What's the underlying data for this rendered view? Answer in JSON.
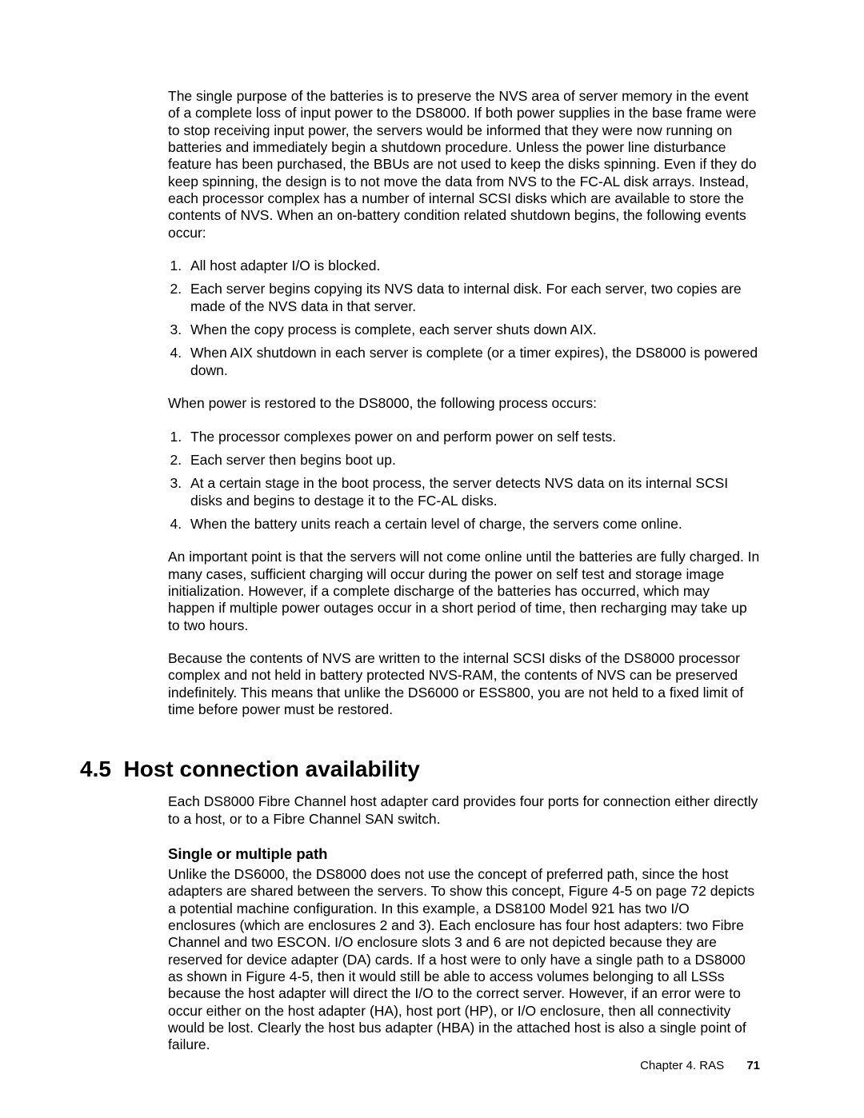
{
  "intro_para": "The single purpose of the batteries is to preserve the NVS area of server memory in the event of a complete loss of input power to the DS8000. If both power supplies in the base frame were to stop receiving input power, the servers would be informed that they were now running on batteries and immediately begin a shutdown procedure. Unless the power line disturbance feature has been purchased, the BBUs are not used to keep the disks spinning. Even if they do keep spinning, the design is to not move the data from NVS to the FC-AL disk arrays. Instead, each processor complex has a number of internal SCSI disks which are available to store the contents of NVS. When an on-battery condition related shutdown begins, the following events occur:",
  "list1": [
    "All host adapter I/O is blocked.",
    "Each server begins copying its NVS data to internal disk. For each server, two copies are made of the NVS data in that server.",
    "When the copy process is complete, each server shuts down AIX.",
    "When AIX shutdown in each server is complete (or a timer expires), the DS8000 is powered down."
  ],
  "mid_para": "When power is restored to the DS8000, the following process occurs:",
  "list2": [
    "The processor complexes power on and perform power on self tests.",
    "Each server then begins boot up.",
    "At a certain stage in the boot process, the server detects NVS data on its internal SCSI disks and begins to destage it to the FC-AL disks.",
    "When the battery units reach a certain level of charge, the servers come online."
  ],
  "para_after_list2": "An important point is that the servers will not come online until the batteries are fully charged. In many cases, sufficient charging will occur during the power on self test and storage image initialization. However, if a complete discharge of the batteries has occurred, which may happen if multiple power outages occur in a short period of time, then recharging may take up to two hours.",
  "para_nvs": "Because the contents of NVS are written to the internal SCSI disks of the DS8000 processor complex and not held in battery protected NVS-RAM, the contents of NVS can be preserved indefinitely. This means that unlike the DS6000 or ESS800, you are not held to a fixed limit of time before power must be restored.",
  "section_number": "4.5",
  "section_title": "Host connection availability",
  "section_intro": "Each DS8000 Fibre Channel host adapter card provides four ports for connection either directly to a host, or to a Fibre Channel SAN switch.",
  "subheading": "Single or multiple path",
  "sub_para": "Unlike the DS6000, the DS8000 does not use the concept of preferred path, since the host adapters are shared between the servers. To show this concept, Figure 4-5 on page 72 depicts a potential machine configuration. In this example, a DS8100 Model 921 has two I/O enclosures (which are enclosures 2 and 3). Each enclosure has four host adapters: two Fibre Channel and two ESCON. I/O enclosure slots 3 and 6 are not depicted because they are reserved for device adapter (DA) cards. If a host were to only have a single path to a DS8000 as shown in Figure 4-5, then it would still be able to access volumes belonging to all LSSs because the host adapter will direct the I/O to the correct server. However, if an error were to occur either on the host adapter (HA), host port (HP), or I/O enclosure, then all connectivity would be lost. Clearly the host bus adapter (HBA) in the attached host is also a single point of failure.",
  "footer_chapter": "Chapter 4. RAS",
  "footer_page": "71"
}
